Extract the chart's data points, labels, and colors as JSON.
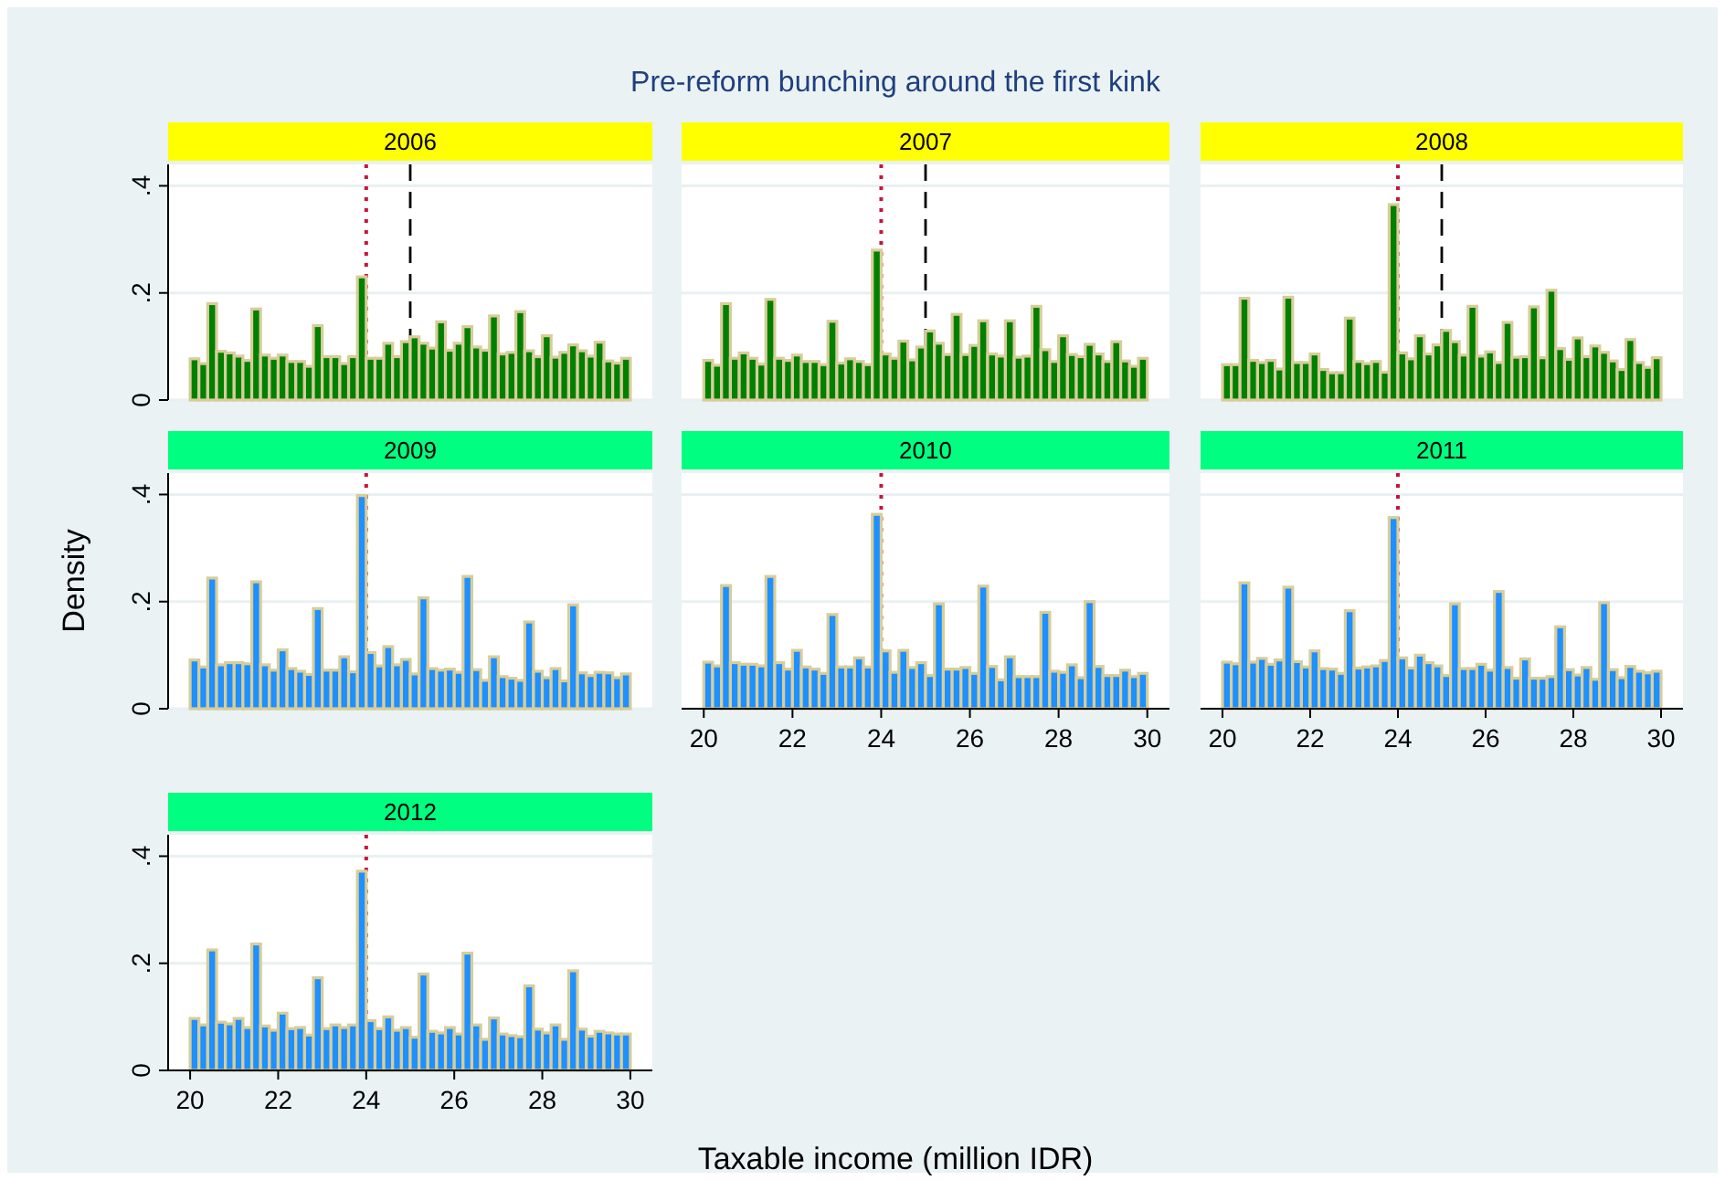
{
  "chart_data": [
    {
      "type": "histogram",
      "title": "2006",
      "annotations": [
        "Pre-reform bunching around the first kink"
      ],
      "bins": [
        20,
        20.2,
        20.4,
        20.6,
        20.8,
        21,
        21.2,
        21.4,
        21.6,
        21.8,
        22,
        22.2,
        22.4,
        22.6,
        22.8,
        23,
        23.2,
        23.4,
        23.6,
        23.8,
        24,
        24.2,
        24.4,
        24.6,
        24.8,
        25,
        25.2,
        25.4,
        25.6,
        25.8,
        26,
        26.2,
        26.4,
        26.6,
        26.8,
        27,
        27.2,
        27.4,
        27.6,
        27.8,
        28,
        28.2,
        28.4,
        28.6,
        28.8,
        29,
        29.2,
        29.4,
        29.6,
        29.8,
        30
      ],
      "values": [
        0.077,
        0.068,
        0.18,
        0.091,
        0.088,
        0.082,
        0.074,
        0.17,
        0.084,
        0.078,
        0.084,
        0.072,
        0.072,
        0.063,
        0.139,
        0.081,
        0.081,
        0.068,
        0.081,
        0.23,
        0.078,
        0.078,
        0.106,
        0.081,
        0.109,
        0.118,
        0.106,
        0.097,
        0.146,
        0.093,
        0.106,
        0.137,
        0.099,
        0.093,
        0.157,
        0.086,
        0.089,
        0.165,
        0.092,
        0.081,
        0.12,
        0.08,
        0.089,
        0.103,
        0.092,
        0.082,
        0.108,
        0.073,
        0.069,
        0.078
      ],
      "color": "#008000",
      "xlim": [
        19.5,
        30.5
      ],
      "ylim": [
        0,
        0.44
      ],
      "yticks": [
        {
          "value": 0,
          "label": "0"
        },
        {
          "value": 0.2,
          "label": ".2"
        },
        {
          "value": 0.4,
          "label": ".4"
        }
      ],
      "grid": "y",
      "tick_labels": "y",
      "ref_lines": [
        {
          "axis": "x",
          "value": 24,
          "color": "#c8143c",
          "line_style": "dotted"
        },
        {
          "axis": "x",
          "value": 25,
          "color": "#000000",
          "line_style": "dashed"
        }
      ]
    },
    {
      "type": "histogram",
      "title": "2007",
      "bins": [
        20,
        20.2,
        20.4,
        20.6,
        20.8,
        21,
        21.2,
        21.4,
        21.6,
        21.8,
        22,
        22.2,
        22.4,
        22.6,
        22.8,
        23,
        23.2,
        23.4,
        23.6,
        23.8,
        24,
        24.2,
        24.4,
        24.6,
        24.8,
        25,
        25.2,
        25.4,
        25.6,
        25.8,
        26,
        26.2,
        26.4,
        26.6,
        26.8,
        27,
        27.2,
        27.4,
        27.6,
        27.8,
        28,
        28.2,
        28.4,
        28.6,
        28.8,
        29,
        29.2,
        29.4,
        29.6,
        29.8,
        30
      ],
      "values": [
        0.074,
        0.065,
        0.18,
        0.078,
        0.088,
        0.078,
        0.067,
        0.188,
        0.078,
        0.074,
        0.084,
        0.072,
        0.072,
        0.066,
        0.147,
        0.069,
        0.077,
        0.072,
        0.066,
        0.28,
        0.086,
        0.078,
        0.11,
        0.075,
        0.099,
        0.129,
        0.106,
        0.085,
        0.16,
        0.085,
        0.102,
        0.148,
        0.086,
        0.082,
        0.148,
        0.08,
        0.082,
        0.175,
        0.094,
        0.072,
        0.12,
        0.085,
        0.081,
        0.104,
        0.086,
        0.072,
        0.109,
        0.073,
        0.063,
        0.078
      ],
      "color": "#008000",
      "xlim": [
        19.5,
        30.5
      ],
      "ylim": [
        0,
        0.44
      ],
      "yticks": [
        0,
        0.2,
        0.4
      ],
      "grid": "y",
      "tick_labels": false,
      "ref_lines": [
        {
          "axis": "x",
          "value": 24,
          "color": "#c8143c",
          "line_style": "dotted"
        },
        {
          "axis": "x",
          "value": 25,
          "color": "#000000",
          "line_style": "dashed"
        }
      ]
    },
    {
      "type": "histogram",
      "title": "2008",
      "bins": [
        20,
        20.2,
        20.4,
        20.6,
        20.8,
        21,
        21.2,
        21.4,
        21.6,
        21.8,
        22,
        22.2,
        22.4,
        22.6,
        22.8,
        23,
        23.2,
        23.4,
        23.6,
        23.8,
        24,
        24.2,
        24.4,
        24.6,
        24.8,
        25,
        25.2,
        25.4,
        25.6,
        25.8,
        26,
        26.2,
        26.4,
        26.6,
        26.8,
        27,
        27.2,
        27.4,
        27.6,
        27.8,
        28,
        28.2,
        28.4,
        28.6,
        28.8,
        29,
        29.2,
        29.4,
        29.6,
        29.8,
        30
      ],
      "values": [
        0.066,
        0.066,
        0.19,
        0.074,
        0.07,
        0.074,
        0.058,
        0.192,
        0.07,
        0.07,
        0.086,
        0.057,
        0.051,
        0.051,
        0.153,
        0.072,
        0.068,
        0.072,
        0.052,
        0.365,
        0.088,
        0.077,
        0.12,
        0.086,
        0.103,
        0.13,
        0.109,
        0.084,
        0.175,
        0.082,
        0.09,
        0.07,
        0.145,
        0.08,
        0.081,
        0.174,
        0.079,
        0.205,
        0.096,
        0.076,
        0.116,
        0.081,
        0.101,
        0.089,
        0.073,
        0.057,
        0.113,
        0.07,
        0.061,
        0.079
      ],
      "color": "#008000",
      "xlim": [
        19.5,
        30.5
      ],
      "ylim": [
        0,
        0.44
      ],
      "yticks": [
        0,
        0.2,
        0.4
      ],
      "grid": "y",
      "tick_labels": false,
      "ref_lines": [
        {
          "axis": "x",
          "value": 24,
          "color": "#c8143c",
          "line_style": "dotted"
        },
        {
          "axis": "x",
          "value": 25,
          "color": "#000000",
          "line_style": "dashed"
        }
      ]
    },
    {
      "type": "histogram",
      "title": "2009",
      "ylabel": "Density",
      "bins": [
        20,
        20.2,
        20.4,
        20.6,
        20.8,
        21,
        21.2,
        21.4,
        21.6,
        21.8,
        22,
        22.2,
        22.4,
        22.6,
        22.8,
        23,
        23.2,
        23.4,
        23.6,
        23.8,
        24,
        24.2,
        24.4,
        24.6,
        24.8,
        25,
        25.2,
        25.4,
        25.6,
        25.8,
        26,
        26.2,
        26.4,
        26.6,
        26.8,
        27,
        27.2,
        27.4,
        27.6,
        27.8,
        28,
        28.2,
        28.4,
        28.6,
        28.8,
        29,
        29.2,
        29.4,
        29.6,
        29.8,
        30
      ],
      "values": [
        0.091,
        0.078,
        0.244,
        0.082,
        0.086,
        0.086,
        0.084,
        0.237,
        0.082,
        0.072,
        0.11,
        0.075,
        0.07,
        0.064,
        0.187,
        0.072,
        0.072,
        0.097,
        0.069,
        0.398,
        0.105,
        0.08,
        0.116,
        0.082,
        0.092,
        0.065,
        0.207,
        0.075,
        0.072,
        0.074,
        0.068,
        0.247,
        0.073,
        0.053,
        0.097,
        0.06,
        0.057,
        0.053,
        0.162,
        0.07,
        0.058,
        0.075,
        0.052,
        0.194,
        0.067,
        0.062,
        0.068,
        0.067,
        0.058,
        0.065
      ],
      "color": "#1e90ff",
      "xlim": [
        19.5,
        30.5
      ],
      "ylim": [
        0,
        0.44
      ],
      "yticks": [
        {
          "value": 0,
          "label": "0"
        },
        {
          "value": 0.2,
          "label": ".2"
        },
        {
          "value": 0.4,
          "label": ".4"
        }
      ],
      "grid": "y",
      "tick_labels": "y",
      "ref_lines": [
        {
          "axis": "x",
          "value": 24,
          "color": "#c8143c",
          "line_style": "dotted"
        }
      ]
    },
    {
      "type": "histogram",
      "title": "2010",
      "bins": [
        20,
        20.2,
        20.4,
        20.6,
        20.8,
        21,
        21.2,
        21.4,
        21.6,
        21.8,
        22,
        22.2,
        22.4,
        22.6,
        22.8,
        23,
        23.2,
        23.4,
        23.6,
        23.8,
        24,
        24.2,
        24.4,
        24.6,
        24.8,
        25,
        25.2,
        25.4,
        25.6,
        25.8,
        26,
        26.2,
        26.4,
        26.6,
        26.8,
        27,
        27.2,
        27.4,
        27.6,
        27.8,
        28,
        28.2,
        28.4,
        28.6,
        28.8,
        29,
        29.2,
        29.4,
        29.6,
        29.8,
        30
      ],
      "values": [
        0.087,
        0.08,
        0.23,
        0.086,
        0.083,
        0.083,
        0.08,
        0.247,
        0.086,
        0.074,
        0.109,
        0.078,
        0.074,
        0.066,
        0.176,
        0.078,
        0.078,
        0.095,
        0.078,
        0.363,
        0.108,
        0.068,
        0.109,
        0.077,
        0.086,
        0.062,
        0.196,
        0.074,
        0.074,
        0.077,
        0.066,
        0.229,
        0.079,
        0.054,
        0.097,
        0.06,
        0.06,
        0.06,
        0.18,
        0.07,
        0.068,
        0.082,
        0.058,
        0.2,
        0.079,
        0.062,
        0.062,
        0.072,
        0.06,
        0.066
      ],
      "color": "#1e90ff",
      "xlim": [
        19.5,
        30.5
      ],
      "ylim": [
        0,
        0.44
      ],
      "xticks": [
        20,
        22,
        24,
        26,
        28,
        30
      ],
      "yticks": [
        0,
        0.2,
        0.4
      ],
      "grid": "y",
      "tick_labels": "x",
      "ref_lines": [
        {
          "axis": "x",
          "value": 24,
          "color": "#c8143c",
          "line_style": "dotted"
        }
      ]
    },
    {
      "type": "histogram",
      "title": "2011",
      "bins": [
        20,
        20.2,
        20.4,
        20.6,
        20.8,
        21,
        21.2,
        21.4,
        21.6,
        21.8,
        22,
        22.2,
        22.4,
        22.6,
        22.8,
        23,
        23.2,
        23.4,
        23.6,
        23.8,
        24,
        24.2,
        24.4,
        24.6,
        24.8,
        25,
        25.2,
        25.4,
        25.6,
        25.8,
        26,
        26.2,
        26.4,
        26.6,
        26.8,
        27,
        27.2,
        27.4,
        27.6,
        27.8,
        28,
        28.2,
        28.4,
        28.6,
        28.8,
        29,
        29.2,
        29.4,
        29.6,
        29.8,
        30
      ],
      "values": [
        0.087,
        0.084,
        0.235,
        0.087,
        0.094,
        0.083,
        0.091,
        0.227,
        0.088,
        0.078,
        0.108,
        0.075,
        0.074,
        0.066,
        0.183,
        0.076,
        0.078,
        0.08,
        0.09,
        0.357,
        0.095,
        0.076,
        0.1,
        0.086,
        0.08,
        0.062,
        0.196,
        0.075,
        0.075,
        0.083,
        0.072,
        0.219,
        0.077,
        0.057,
        0.093,
        0.057,
        0.057,
        0.06,
        0.153,
        0.073,
        0.063,
        0.077,
        0.055,
        0.198,
        0.073,
        0.058,
        0.079,
        0.07,
        0.067,
        0.07
      ],
      "color": "#1e90ff",
      "xlim": [
        19.5,
        30.5
      ],
      "ylim": [
        0,
        0.44
      ],
      "xticks": [
        20,
        22,
        24,
        26,
        28,
        30
      ],
      "yticks": [
        0,
        0.2,
        0.4
      ],
      "grid": "y",
      "tick_labels": "x",
      "ref_lines": [
        {
          "axis": "x",
          "value": 24,
          "color": "#c8143c",
          "line_style": "dotted"
        }
      ]
    },
    {
      "type": "histogram",
      "title": "2012",
      "xlabel": "Taxable income (million IDR)",
      "bins": [
        20,
        20.2,
        20.4,
        20.6,
        20.8,
        21,
        21.2,
        21.4,
        21.6,
        21.8,
        22,
        22.2,
        22.4,
        22.6,
        22.8,
        23,
        23.2,
        23.4,
        23.6,
        23.8,
        24,
        24.2,
        24.4,
        24.6,
        24.8,
        25,
        25.2,
        25.4,
        25.6,
        25.8,
        26,
        26.2,
        26.4,
        26.6,
        26.8,
        27,
        27.2,
        27.4,
        27.6,
        27.8,
        28,
        28.2,
        28.4,
        28.6,
        28.8,
        29,
        29.2,
        29.4,
        29.6,
        29.8,
        30
      ],
      "values": [
        0.097,
        0.085,
        0.225,
        0.09,
        0.087,
        0.097,
        0.08,
        0.236,
        0.083,
        0.075,
        0.107,
        0.078,
        0.08,
        0.066,
        0.173,
        0.078,
        0.085,
        0.08,
        0.085,
        0.372,
        0.093,
        0.078,
        0.1,
        0.075,
        0.08,
        0.062,
        0.18,
        0.073,
        0.07,
        0.08,
        0.068,
        0.219,
        0.085,
        0.058,
        0.098,
        0.068,
        0.065,
        0.063,
        0.158,
        0.077,
        0.07,
        0.085,
        0.058,
        0.186,
        0.077,
        0.064,
        0.073,
        0.07,
        0.068,
        0.068
      ],
      "color": "#1e90ff",
      "xlim": [
        19.5,
        30.5
      ],
      "ylim": [
        0,
        0.44
      ],
      "xticks": [
        20,
        22,
        24,
        26,
        28,
        30
      ],
      "yticks": [
        {
          "value": 0,
          "label": "0"
        },
        {
          "value": 0.2,
          "label": ".2"
        },
        {
          "value": 0.4,
          "label": ".4"
        }
      ],
      "grid": "y",
      "ref_lines": [
        {
          "axis": "x",
          "value": 24,
          "color": "#c8143c",
          "line_style": "dotted"
        }
      ]
    }
  ]
}
